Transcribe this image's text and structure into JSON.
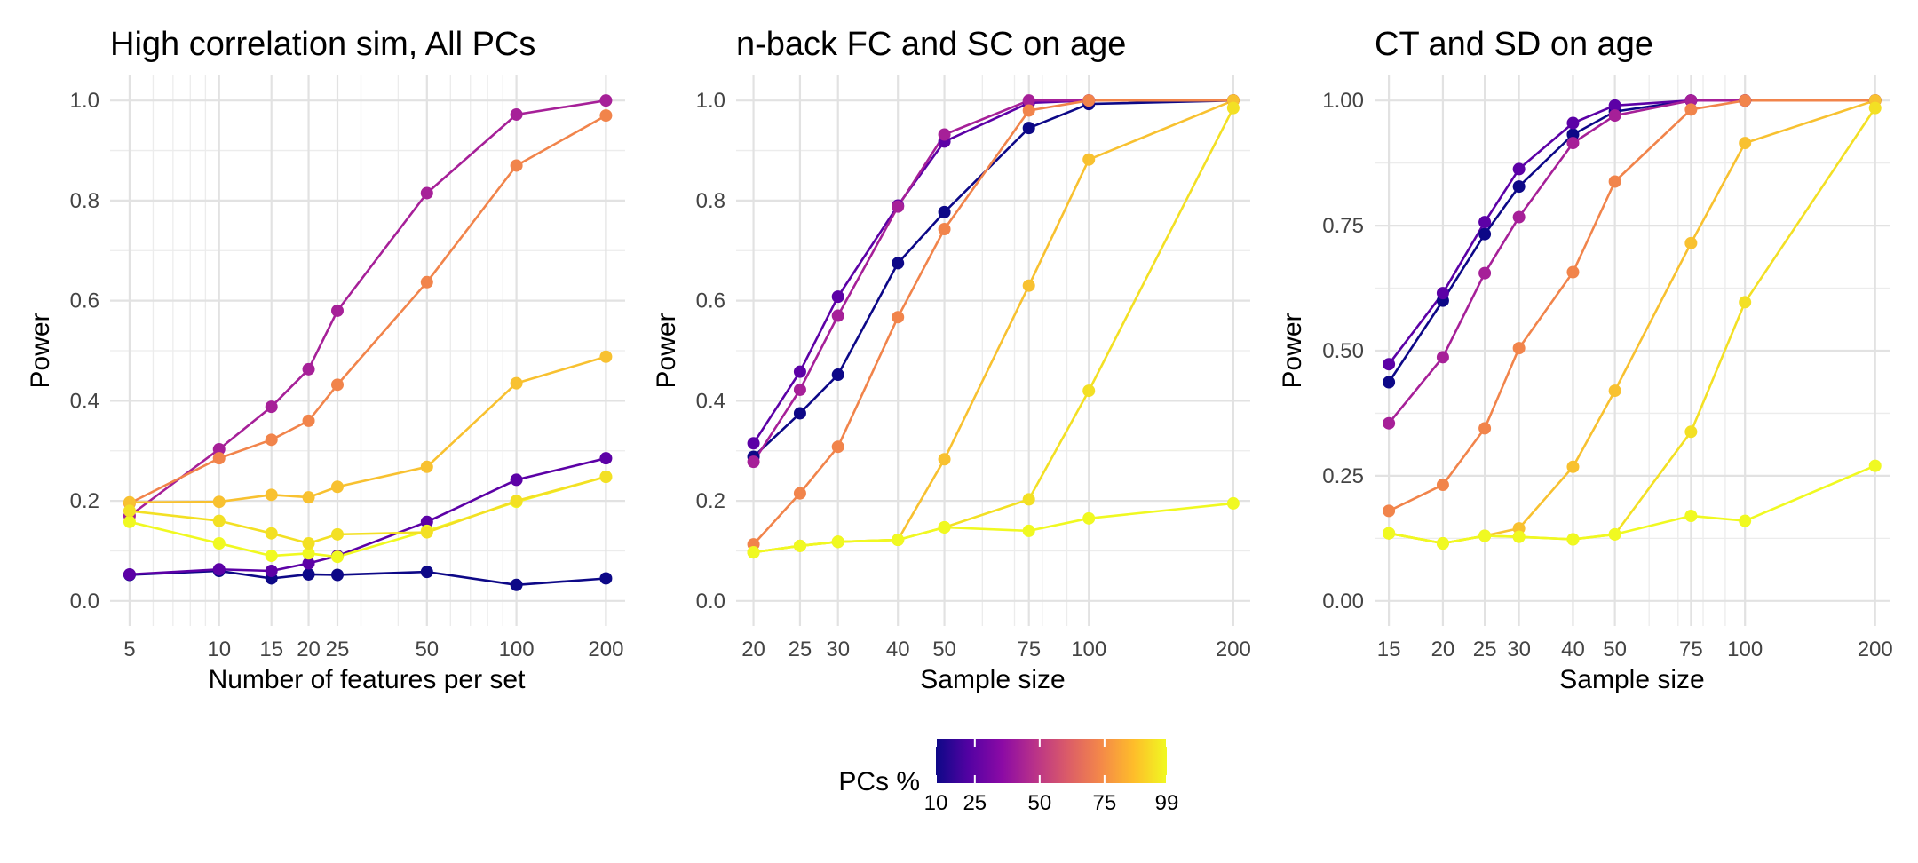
{
  "legend": {
    "title": "PCs %",
    "ticks": [
      "10",
      "25",
      "50",
      "75",
      "99"
    ],
    "tick_values": [
      10,
      25,
      50,
      75,
      99
    ],
    "range": [
      10,
      99
    ],
    "colors": [
      "#0d0887",
      "#5402a3",
      "#8b0aa5",
      "#b93289",
      "#db5c68",
      "#f48849",
      "#febd2a",
      "#f0f921"
    ]
  },
  "chart_data": [
    {
      "type": "line",
      "title": "High correlation sim, All PCs",
      "xlabel": "Number of features per set",
      "ylabel": "Power",
      "xscale": "log",
      "xlim": [
        4.3,
        232
      ],
      "ylim": [
        -0.05,
        1.05
      ],
      "grid": true,
      "x": [
        5,
        10,
        15,
        20,
        25,
        50,
        100,
        200
      ],
      "xticks": [
        5,
        10,
        15,
        20,
        25,
        50,
        100,
        200
      ],
      "xtick_labels": [
        "5",
        "10",
        "15",
        "20",
        "25",
        "50",
        "100",
        "200"
      ],
      "yticks": [
        0,
        0.2,
        0.4,
        0.6,
        0.8,
        1.0
      ],
      "ytick_labels": [
        "0.0",
        "0.2",
        "0.4",
        "0.6",
        "0.8",
        "1.0"
      ],
      "series": [
        {
          "pcs": 10,
          "color": "#0d0887",
          "values": [
            0.052,
            0.06,
            0.045,
            0.053,
            0.052,
            0.058,
            0.032,
            0.045
          ]
        },
        {
          "pcs": 25,
          "color": "#5c01a6",
          "values": [
            0.053,
            0.063,
            0.06,
            0.075,
            0.09,
            0.158,
            0.242,
            0.285
          ]
        },
        {
          "pcs": 50,
          "color": "#a62098",
          "values": [
            0.17,
            0.303,
            0.388,
            0.463,
            0.58,
            0.815,
            0.972,
            1.0
          ]
        },
        {
          "pcs": 75,
          "color": "#f1844b",
          "values": [
            0.195,
            0.285,
            0.322,
            0.36,
            0.432,
            0.637,
            0.87,
            0.97
          ]
        },
        {
          "pcs": 90,
          "color": "#f8c130",
          "values": [
            0.197,
            0.198,
            0.212,
            0.207,
            0.228,
            0.268,
            0.435,
            0.488
          ]
        },
        {
          "pcs": 99,
          "color": "#f0f921",
          "values": [
            0.158,
            0.115,
            0.09,
            0.095,
            0.088,
            0.14,
            0.198,
            0.248
          ]
        },
        {
          "pcs": 95,
          "color": "#f3e024",
          "values": [
            0.18,
            0.16,
            0.135,
            0.115,
            0.133,
            0.137,
            0.2,
            0.248
          ]
        }
      ]
    },
    {
      "type": "line",
      "title": "n-back FC and SC on age",
      "xlabel": "Sample size",
      "ylabel": "Power",
      "xscale": "log",
      "xlim": [
        18.4,
        217
      ],
      "ylim": [
        -0.05,
        1.05
      ],
      "grid": true,
      "x": [
        20,
        25,
        30,
        40,
        50,
        75,
        100,
        200
      ],
      "xticks": [
        20,
        25,
        30,
        40,
        50,
        75,
        100,
        200
      ],
      "xtick_labels": [
        "20",
        "25",
        "30",
        "40",
        "50",
        "75",
        "100",
        "200"
      ],
      "yticks": [
        0,
        0.2,
        0.4,
        0.6,
        0.8,
        1.0
      ],
      "ytick_labels": [
        "0.0",
        "0.2",
        "0.4",
        "0.6",
        "0.8",
        "1.0"
      ],
      "series": [
        {
          "pcs": 10,
          "color": "#0d0887",
          "values": [
            0.288,
            0.375,
            0.452,
            0.675,
            0.777,
            0.945,
            0.993,
            1.0
          ]
        },
        {
          "pcs": 25,
          "color": "#5c01a6",
          "values": [
            0.315,
            0.458,
            0.608,
            0.79,
            0.918,
            0.995,
            1.0,
            1.0
          ]
        },
        {
          "pcs": 50,
          "color": "#a62098",
          "values": [
            0.278,
            0.422,
            0.57,
            0.788,
            0.932,
            1.0,
            1.0,
            1.0
          ]
        },
        {
          "pcs": 75,
          "color": "#f1844b",
          "values": [
            0.113,
            0.215,
            0.308,
            0.567,
            0.743,
            0.98,
            1.0,
            1.0
          ]
        },
        {
          "pcs": 90,
          "color": "#f8c130",
          "values": [
            0.097,
            0.11,
            0.118,
            0.122,
            0.283,
            0.63,
            0.882,
            1.0
          ]
        },
        {
          "pcs": 95,
          "color": "#f3e024",
          "values": [
            0.097,
            0.11,
            0.118,
            0.122,
            0.147,
            0.203,
            0.42,
            0.985
          ]
        },
        {
          "pcs": 99,
          "color": "#f0f921",
          "values": [
            0.097,
            0.11,
            0.118,
            0.122,
            0.147,
            0.14,
            0.165,
            0.195
          ]
        }
      ]
    },
    {
      "type": "line",
      "title": "CT and SD on age",
      "xlabel": "Sample size",
      "ylabel": "Power",
      "xscale": "log",
      "xlim": [
        13.9,
        216
      ],
      "ylim": [
        -0.05,
        1.05
      ],
      "grid": true,
      "x": [
        15,
        20,
        25,
        30,
        40,
        50,
        75,
        100,
        200
      ],
      "xticks": [
        15,
        20,
        25,
        30,
        40,
        50,
        75,
        100,
        200
      ],
      "xtick_labels": [
        "15",
        "20",
        "25",
        "30",
        "40",
        "50",
        "75",
        "100",
        "200"
      ],
      "yticks": [
        0,
        0.25,
        0.5,
        0.75,
        1.0
      ],
      "ytick_labels": [
        "0.00",
        "0.25",
        "0.50",
        "0.75",
        "1.00"
      ],
      "series": [
        {
          "pcs": 10,
          "color": "#0d0887",
          "values": [
            0.437,
            0.6,
            0.733,
            0.828,
            0.932,
            0.978,
            1.0,
            1.0,
            1.0
          ]
        },
        {
          "pcs": 25,
          "color": "#5c01a6",
          "values": [
            0.473,
            0.615,
            0.757,
            0.863,
            0.955,
            0.99,
            1.0,
            1.0,
            1.0
          ]
        },
        {
          "pcs": 50,
          "color": "#a62098",
          "values": [
            0.355,
            0.487,
            0.655,
            0.767,
            0.915,
            0.97,
            1.0,
            1.0,
            1.0
          ]
        },
        {
          "pcs": 75,
          "color": "#f1844b",
          "values": [
            0.18,
            0.232,
            0.345,
            0.505,
            0.657,
            0.838,
            0.982,
            1.0,
            1.0
          ]
        },
        {
          "pcs": 90,
          "color": "#f8c130",
          "values": [
            0.135,
            0.115,
            0.13,
            0.145,
            0.268,
            0.42,
            0.715,
            0.915,
            1.0
          ]
        },
        {
          "pcs": 95,
          "color": "#f3e024",
          "values": [
            0.135,
            0.115,
            0.13,
            0.128,
            0.123,
            0.133,
            0.338,
            0.597,
            0.985
          ]
        },
        {
          "pcs": 99,
          "color": "#f0f921",
          "values": [
            0.135,
            0.115,
            0.13,
            0.128,
            0.123,
            0.133,
            0.17,
            0.16,
            0.27
          ]
        }
      ]
    }
  ]
}
